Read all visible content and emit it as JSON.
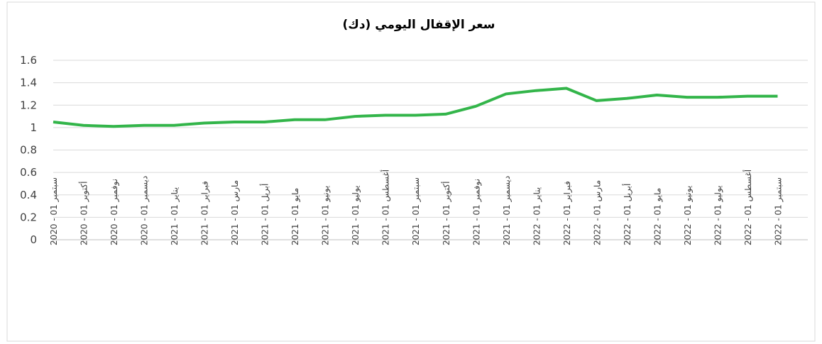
{
  "chart_data": {
    "type": "line",
    "title": "سعر الإقفال اليومي (دك)",
    "categories": [
      "سبتمبر 01 - 2020",
      "أكتوبر 01 - 2020",
      "نوفمبر 01 - 2020",
      "ديسمبر 01 - 2020",
      "يناير 01 - 2021",
      "فبراير 01 - 2021",
      "مارس 01 - 2021",
      "أبريل 01 - 2021",
      "مايو 01 - 2021",
      "يونيو 01 - 2021",
      "يوليو 01 - 2021",
      "أغسطس 01 - 2021",
      "سبتمبر 01 - 2021",
      "أكتوبر 01 - 2021",
      "نوفمبر 01 - 2021",
      "ديسمبر 01 - 2021",
      "يناير 01 - 2022",
      "فبراير 01 - 2022",
      "مارس 01 - 2022",
      "أبريل 01 - 2022",
      "مايو 01 - 2022",
      "يونيو 01 - 2022",
      "يوليو 01 - 2022",
      "أغسطس 01 - 2022",
      "سبتمبر 01 - 2022"
    ],
    "values": [
      1.05,
      1.02,
      1.01,
      1.02,
      1.02,
      1.04,
      1.05,
      1.05,
      1.07,
      1.07,
      1.1,
      1.11,
      1.11,
      1.12,
      1.19,
      1.3,
      1.33,
      1.35,
      1.24,
      1.26,
      1.29,
      1.27,
      1.27,
      1.28,
      1.28
    ],
    "color": "#33b54a",
    "ylim": [
      0,
      1.6
    ],
    "yticks": [
      0,
      0.2,
      0.4,
      0.6,
      0.8,
      1,
      1.2,
      1.4,
      1.6
    ],
    "grid": true
  }
}
